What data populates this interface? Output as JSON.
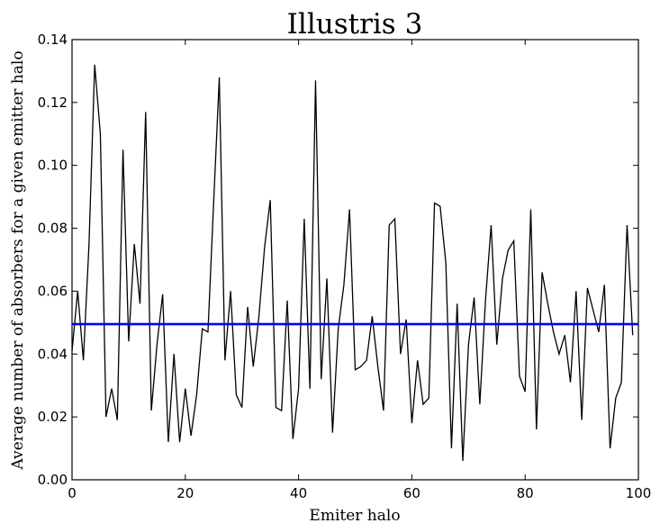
{
  "chart_data": {
    "type": "line",
    "title": "Illustris 3",
    "xlabel": "Emiter halo",
    "ylabel": "Average number of absorbers for a given emitter halo",
    "xlim": [
      0,
      100
    ],
    "ylim": [
      0,
      0.14
    ],
    "xticks": [
      0,
      20,
      40,
      60,
      80,
      100
    ],
    "yticks": [
      0,
      0.02,
      0.04,
      0.06,
      0.08,
      0.1,
      0.12,
      0.14
    ],
    "xtick_labels": [
      "0",
      "20",
      "40",
      "60",
      "80",
      "100"
    ],
    "ytick_labels": [
      "0.00",
      "0.02",
      "0.04",
      "0.06",
      "0.08",
      "0.10",
      "0.12",
      "0.14"
    ],
    "grid": false,
    "series": [
      {
        "color": "#000000",
        "x": [
          0,
          1,
          2,
          3,
          4,
          5,
          6,
          7,
          8,
          9,
          10,
          11,
          12,
          13,
          14,
          15,
          16,
          17,
          18,
          19,
          20,
          21,
          22,
          23,
          24,
          25,
          26,
          27,
          28,
          29,
          30,
          31,
          32,
          33,
          34,
          35,
          36,
          37,
          38,
          39,
          40,
          41,
          42,
          43,
          44,
          45,
          46,
          47,
          48,
          49,
          50,
          51,
          52,
          53,
          54,
          55,
          56,
          57,
          58,
          59,
          60,
          61,
          62,
          63,
          64,
          65,
          66,
          67,
          68,
          69,
          70,
          71,
          72,
          73,
          74,
          75,
          76,
          77,
          78,
          79,
          80,
          81,
          82,
          83,
          84,
          85,
          86,
          87,
          88,
          89,
          90,
          91,
          92,
          93,
          94,
          95,
          96,
          97,
          98,
          99
        ],
        "values": [
          0.041,
          0.06,
          0.038,
          0.075,
          0.132,
          0.11,
          0.02,
          0.029,
          0.019,
          0.105,
          0.044,
          0.075,
          0.056,
          0.117,
          0.022,
          0.043,
          0.059,
          0.012,
          0.04,
          0.012,
          0.029,
          0.014,
          0.027,
          0.048,
          0.047,
          0.088,
          0.128,
          0.038,
          0.06,
          0.027,
          0.023,
          0.055,
          0.036,
          0.052,
          0.074,
          0.089,
          0.023,
          0.022,
          0.057,
          0.013,
          0.029,
          0.083,
          0.029,
          0.127,
          0.032,
          0.064,
          0.015,
          0.048,
          0.062,
          0.086,
          0.035,
          0.036,
          0.038,
          0.052,
          0.036,
          0.022,
          0.081,
          0.083,
          0.04,
          0.051,
          0.018,
          0.038,
          0.024,
          0.026,
          0.088,
          0.087,
          0.069,
          0.01,
          0.056,
          0.006,
          0.043,
          0.058,
          0.024,
          0.057,
          0.081,
          0.043,
          0.064,
          0.073,
          0.076,
          0.033,
          0.028,
          0.086,
          0.016,
          0.066,
          0.056,
          0.047,
          0.04,
          0.046,
          0.031,
          0.06,
          0.019,
          0.061,
          0.054,
          0.047,
          0.062,
          0.01,
          0.026,
          0.031,
          0.081,
          0.046
        ]
      },
      {
        "color": "#0000ff",
        "x": [
          0,
          100
        ],
        "values": [
          0.0495,
          0.0495
        ]
      }
    ]
  }
}
